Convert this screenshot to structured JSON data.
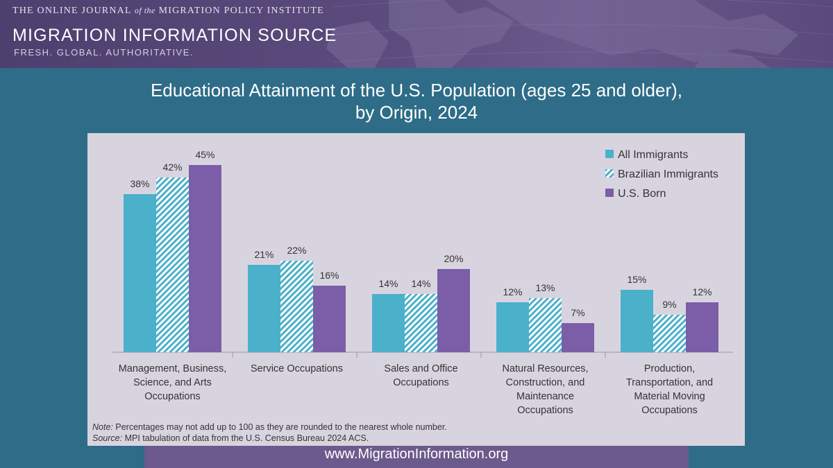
{
  "header": {
    "journal_line_pre": "THE ONLINE JOURNAL",
    "journal_line_of": "of the",
    "journal_line_post": "MIGRATION POLICY INSTITUTE",
    "brand": "MIGRATION INFORMATION SOURCE",
    "slogan": "FRESH. GLOBAL. AUTHORITATIVE."
  },
  "title_line1": "Educational Attainment of the U.S. Population (ages 25 and older),",
  "title_line2": "by Origin, 2024",
  "footer_url": "www.MigrationInformation.org",
  "note_label": "Note:",
  "note_text": "Percentages may not add up to 100 as they are rounded to the nearest whole number.",
  "source_label": "Source:",
  "source_text": "MPI tabulation of data from the U.S. Census Bureau 2024 ACS.",
  "colors": {
    "all": "#4bb0c9",
    "brazil_stripe": "#4bb0c9",
    "brazil_bg": "#ffffff",
    "us": "#7b5ea7"
  },
  "chart_data": {
    "type": "bar",
    "ylim": [
      0,
      50
    ],
    "legend_position": "top-right",
    "categories": [
      [
        "Management, Business,",
        "Science, and Arts",
        "Occupations"
      ],
      [
        "Service Occupations"
      ],
      [
        "Sales and Office",
        "Occupations"
      ],
      [
        "Natural Resources,",
        "Construction, and",
        "Maintenance",
        "Occupations"
      ],
      [
        "Production,",
        "Transportation, and",
        "Material Moving",
        "Occupations"
      ]
    ],
    "series": [
      {
        "name": "All Immigrants",
        "values": [
          38,
          21,
          14,
          12,
          15
        ],
        "labels": [
          "38%",
          "21%",
          "14%",
          "12%",
          "15%"
        ]
      },
      {
        "name": "Brazilian Immigrants",
        "values": [
          42,
          22,
          14,
          13,
          9
        ],
        "labels": [
          "42%",
          "22%",
          "14%",
          "13%",
          "9%"
        ]
      },
      {
        "name": "U.S. Born",
        "values": [
          45,
          16,
          20,
          7,
          12
        ],
        "labels": [
          "45%",
          "16%",
          "20%",
          "7%",
          "12%"
        ]
      }
    ]
  }
}
